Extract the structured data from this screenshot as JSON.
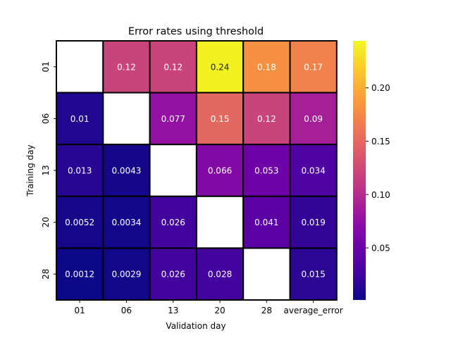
{
  "chart_data": {
    "type": "heatmap",
    "title": "Error rates using threshold",
    "xlabel": "Validation day",
    "ylabel": "Training day",
    "x_categories": [
      "01",
      "06",
      "13",
      "20",
      "28",
      "average_error"
    ],
    "y_categories": [
      "01",
      "06",
      "13",
      "20",
      "28"
    ],
    "cells": [
      [
        null,
        0.12,
        0.12,
        0.24,
        0.18,
        0.17
      ],
      [
        0.01,
        null,
        0.077,
        0.15,
        0.12,
        0.09
      ],
      [
        0.013,
        0.0043,
        null,
        0.066,
        0.053,
        0.034
      ],
      [
        0.0052,
        0.0034,
        0.026,
        null,
        0.041,
        0.019
      ],
      [
        0.0012,
        0.0029,
        0.026,
        0.028,
        null,
        0.015
      ]
    ],
    "color_range": [
      0.0012,
      0.244
    ],
    "colormap": "plasma",
    "colorbar_ticks": [
      "0.05",
      "0.10",
      "0.15",
      "0.20"
    ],
    "colorbar_tick_values": [
      0.05,
      0.1,
      0.15,
      0.2
    ],
    "cell_border_color": "#000000",
    "missing_cell_color": "#ffffff",
    "annotation_light_color": "#ffffff",
    "annotation_dark_color": "#262626"
  }
}
